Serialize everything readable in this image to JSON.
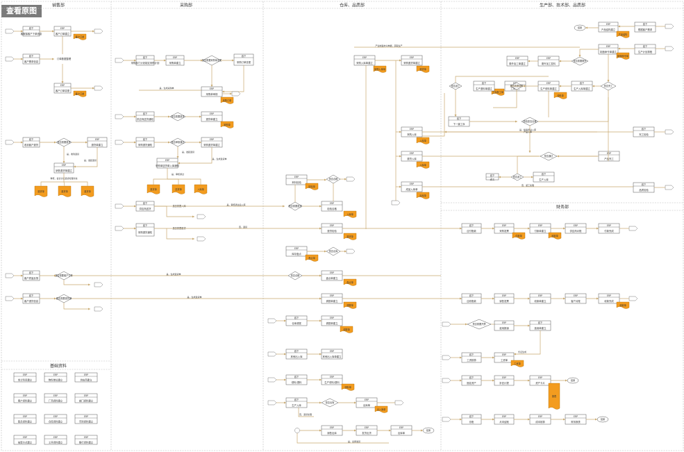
{
  "view_original_button": "查看原图",
  "lanes": {
    "sales": "销售部",
    "purchase": "采购部",
    "warehouse": "仓库、品质部",
    "production": "生产部、技术部、品质部",
    "finance": "财务部",
    "basic": "基础资料"
  },
  "tags": {
    "offline": "线下",
    "erp": "ERP",
    "yes": "是",
    "no": "否"
  },
  "sales": {
    "n1": "客服接客户下单信息",
    "n2": "客户订单建立",
    "n3": "客户需求信息",
    "n4": "订单数据整理",
    "n5": "客户订单变更",
    "n6": "收到客户退货",
    "n7": "退货单建立",
    "n8": "销售退货单建立",
    "n9": "客户质量反馈",
    "n10": "客户退货信息",
    "d1": "是否需要退货",
    "d2": "是否需要客户订单",
    "d3": "是否需要退货单",
    "doc1": "客户订单",
    "doc2": "退货单",
    "doc3": "退货单",
    "doc4": "客户订单",
    "doc5": "客户订单",
    "doc6": "退货单",
    "note1": "是，收到退货",
    "note2": "审核，会议讨论退货处理方案",
    "note3": "是，发起退货",
    "note4": "是，生成退货单"
  },
  "purchase": {
    "n1": "采购部门计划制定采购计划",
    "n2": "采购单建立",
    "n3": "采购单审核",
    "n4": "采购订单变更",
    "n5": "供应商送货通知",
    "n6": "采购退货通知",
    "n7": "退货单建立",
    "n8": "采购退货单建立",
    "n9": "供应商送货",
    "n10": "采购单送货单入库通知",
    "d1": "是否需要采购单变更",
    "d2": "是否需要退货",
    "d3": "是否审核通过",
    "d4": "是否需要入库",
    "doc1": "采购订单",
    "doc2": "采购单",
    "doc3": "退货单",
    "doc4": "送货单",
    "doc5": "入库单",
    "note1": "是，发起退货",
    "note2": "是，生成退货单",
    "note3": "是，审核通过",
    "note4": "是，审核通过后入库"
  },
  "warehouse": {
    "n1": "采购入库单建立",
    "n2": "采购退货单建立",
    "n3": "来料检验",
    "n4": "检验合格",
    "n5": "采购入库",
    "n6": "仓库库存数量",
    "n7": "退货检验",
    "n8": "退货入库",
    "n9": "库存盘点",
    "n10": "盘点单建立",
    "n11": "仓库调拨",
    "n12": "调拨单建立",
    "n13": "其他出入库",
    "n14": "其他出入库单建立",
    "n15": "领料/退料",
    "n16": "生产领料/退料",
    "n17": "生产入库",
    "n18": "成品入库单",
    "n19": "出库单",
    "n20": "销售出库",
    "n21": "发货出货",
    "d1": "是否合格",
    "d2": "是否需要退货",
    "d3": "是否出库",
    "doc1": "采购入库单",
    "doc2": "退货单",
    "doc3": "检验单",
    "doc4": "入库单",
    "doc5": "盘点单",
    "doc6": "调拨单",
    "doc7": "出入库单",
    "doc8": "领料单",
    "doc9": "入库单",
    "doc10": "出库单",
    "note1": "是，合格入库",
    "note2": "否，退货处理",
    "note3": "是，出库发货"
  },
  "production": {
    "n1": "产品结构建立",
    "n2": "根据客户需求",
    "n3": "制造命令单建立",
    "n4": "生产计划排程",
    "n5": "委外加工单建立",
    "n6": "委外加工发料",
    "n7": "工序报工",
    "n8": "生产领料单建立",
    "n9": "生产入库单建立",
    "n10": "产品完工",
    "n11": "完工检验",
    "n12": "生产入库",
    "n13": "下一道工序",
    "n14": "品质检验",
    "n15": "返工",
    "n16": "报废处理",
    "n17": "生产退料单建立",
    "d1": "是否需要委外",
    "d2": "是否需要领料",
    "d3": "是否完工",
    "d4": "检验是否合格",
    "d5": "是否返工",
    "d6": "是否通过",
    "doc1": "产品结构",
    "doc2": "制造命令单",
    "doc3": "委外加工单",
    "doc4": "领料单",
    "doc5": "入库单",
    "doc6": "退料单",
    "doc7": "工序报工单",
    "note1": "是，需要委外",
    "note2": "是，需要领料",
    "note3": "是，检验通过入库",
    "note4": "否，返工处理"
  },
  "finance": {
    "n1": "应付账款",
    "n2": "采购发票",
    "n3": "付款单建立",
    "n4": "供应商对账",
    "n5": "付款完成",
    "n6": "应收账款",
    "n7": "销售发票",
    "n8": "收款单建立",
    "n9": "客户对账",
    "n10": "收款完成",
    "n11": "费用报销",
    "n12": "费用单建立",
    "n13": "凭证生成",
    "n14": "总账",
    "n15": "月末结账",
    "n16": "成本核算",
    "n17": "财务报表",
    "n18": "报表分析",
    "n19": "固定资产",
    "n20": "折旧计提",
    "n21": "资产卡片",
    "n22": "工资核算",
    "n23": "工资单",
    "d1": "是否需要开票",
    "d2": "是否核对",
    "doc1": "付款单",
    "doc2": "收款单",
    "doc3": "费用单",
    "doc4": "凭证",
    "doc5": "报表",
    "doc6": "工资单",
    "end": "结束"
  },
  "basic": {
    "items": [
      "会计科目建立",
      "物料单位建立",
      "供应商建立",
      "客户资料建立",
      "厂商资料建立",
      "部门资料建立",
      "职员资料建立",
      "仓库资料建立",
      "币别资料建立",
      "结算方式建立",
      "工序资料建立",
      "银行资料建立"
    ]
  },
  "end_label": "结束",
  "flow_labels": {
    "l1": "产生制造命令单据，获取生产",
    "l2": "是，生成采购单",
    "l3": "是，生成退货单",
    "l4": "否，退货",
    "l5": "是，入库",
    "l6": "产品入库"
  },
  "colors": {
    "line": "#c8a86e",
    "box_border": "#555555",
    "doc_fill": "#f39c1f",
    "grid": "#bbbbbb"
  }
}
